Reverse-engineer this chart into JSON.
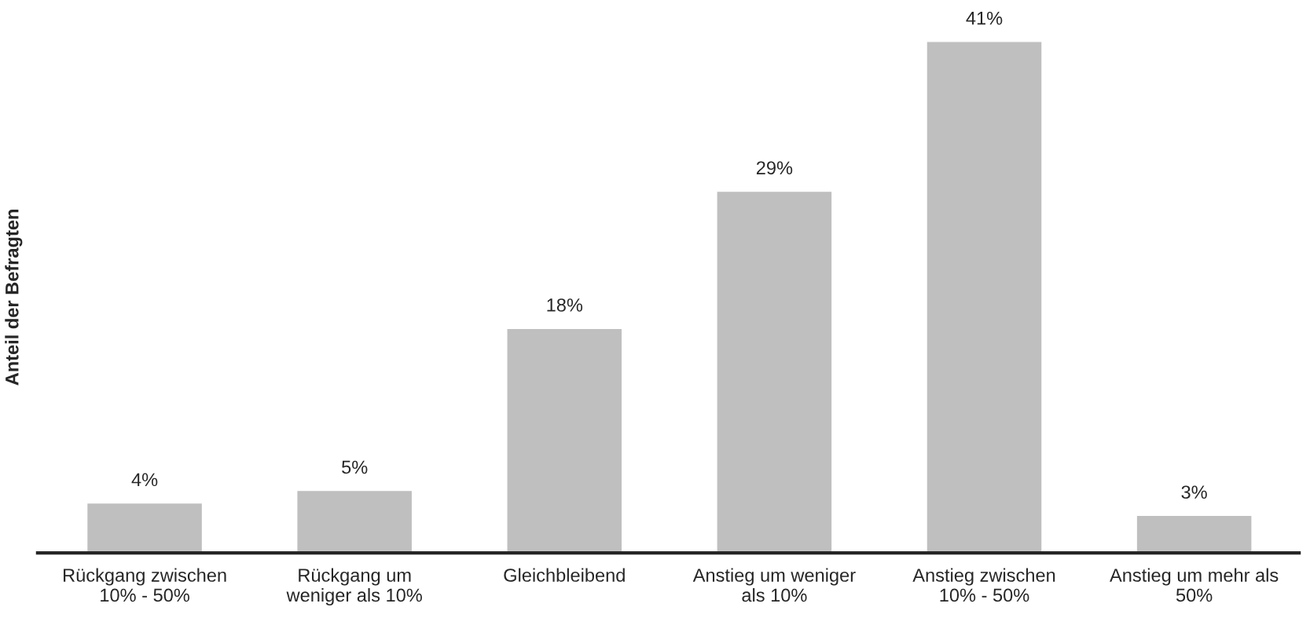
{
  "chart_data": {
    "type": "bar",
    "ylabel": "Anteil der Befragten",
    "categories": [
      "Rückgang zwischen\n10% - 50%",
      "Rückgang um\nweniger als 10%",
      "Gleichbleibend",
      "Anstieg um weniger\nals 10%",
      "Anstieg zwischen\n10% - 50%",
      "Anstieg um mehr als\n50%"
    ],
    "values": [
      4,
      5,
      18,
      29,
      41,
      3
    ],
    "value_labels": [
      "4%",
      "5%",
      "18%",
      "29%",
      "41%",
      "3%"
    ],
    "color": "#bfbfbf",
    "grid": false,
    "legend": false
  }
}
